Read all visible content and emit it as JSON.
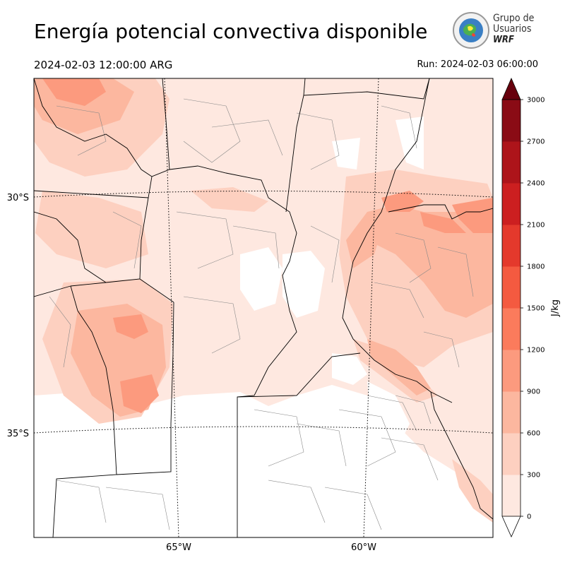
{
  "header": {
    "title": "Energía potencial convectiva disponible",
    "valid_time": "2024-02-03 12:00:00 ARG",
    "run_time": "Run: 2024-02-03 06:00:00"
  },
  "logo": {
    "line1": "Grupo de",
    "line2": "Usuarios",
    "line3": "WRF"
  },
  "map": {
    "lat_labels": [
      "30°S",
      "35°S"
    ],
    "lon_labels": [
      "65°W",
      "60°W"
    ]
  },
  "colorbar": {
    "label": "J/kg",
    "ticks": [
      "0",
      "300",
      "600",
      "900",
      "1200",
      "1500",
      "1800",
      "2100",
      "2400",
      "2700",
      "3000"
    ],
    "colors": [
      "#fee8e0",
      "#fdd0c0",
      "#fcb79f",
      "#fc9a7e",
      "#fb7b5c",
      "#f45a40",
      "#e4392c",
      "#cc1f20",
      "#ad141a",
      "#8a0b15",
      "#67000d"
    ],
    "extend": "both"
  }
}
